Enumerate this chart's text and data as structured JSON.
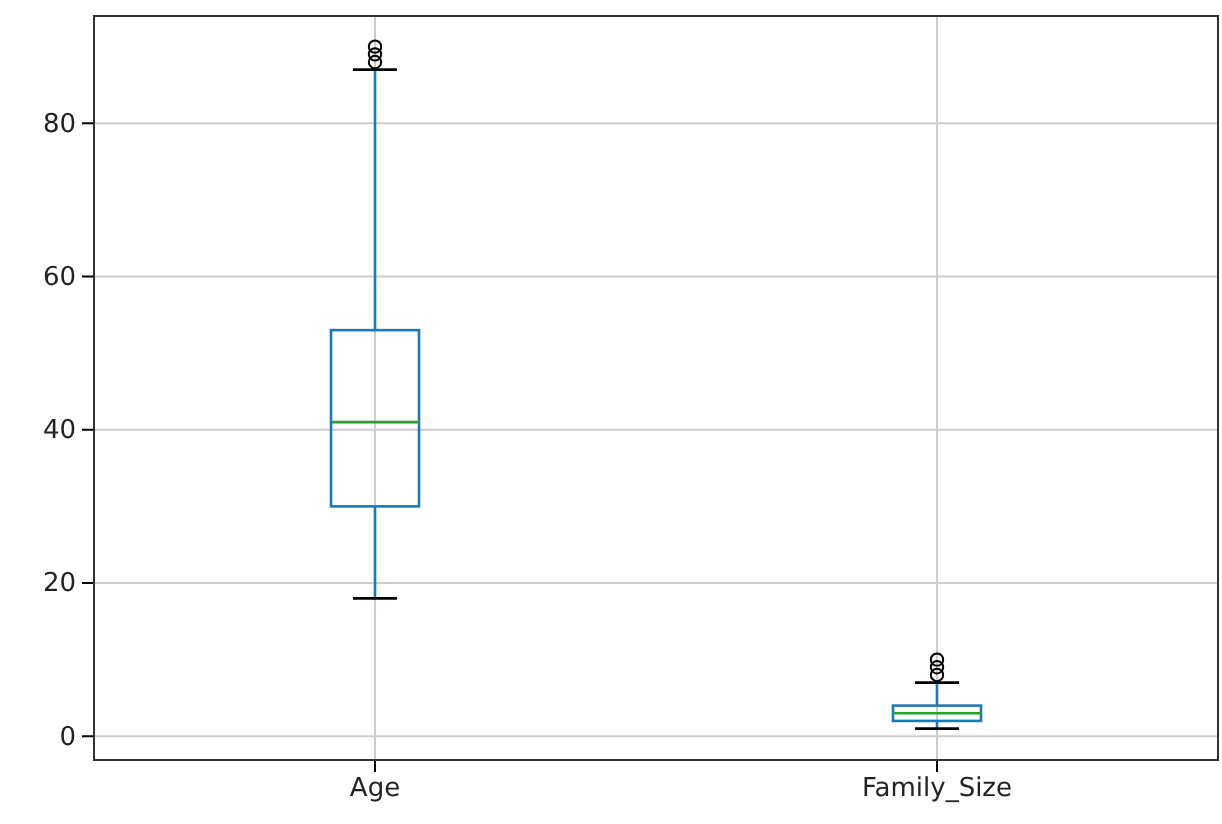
{
  "chart_data": {
    "type": "box",
    "categories": [
      "Age",
      "Family_Size"
    ],
    "boxes": [
      {
        "low": 18,
        "q1": 30,
        "median": 41,
        "q3": 53,
        "high": 87,
        "outliers": [
          88,
          89,
          90
        ]
      },
      {
        "low": 1,
        "q1": 2,
        "median": 3,
        "q3": 4,
        "high": 7,
        "outliers": [
          8,
          9,
          10
        ]
      }
    ],
    "color": "#1f77b4",
    "ylim": [
      -3.1,
      94
    ],
    "yticks": [
      0,
      20,
      40,
      60,
      80
    ],
    "grid": true,
    "marker": "circle"
  }
}
